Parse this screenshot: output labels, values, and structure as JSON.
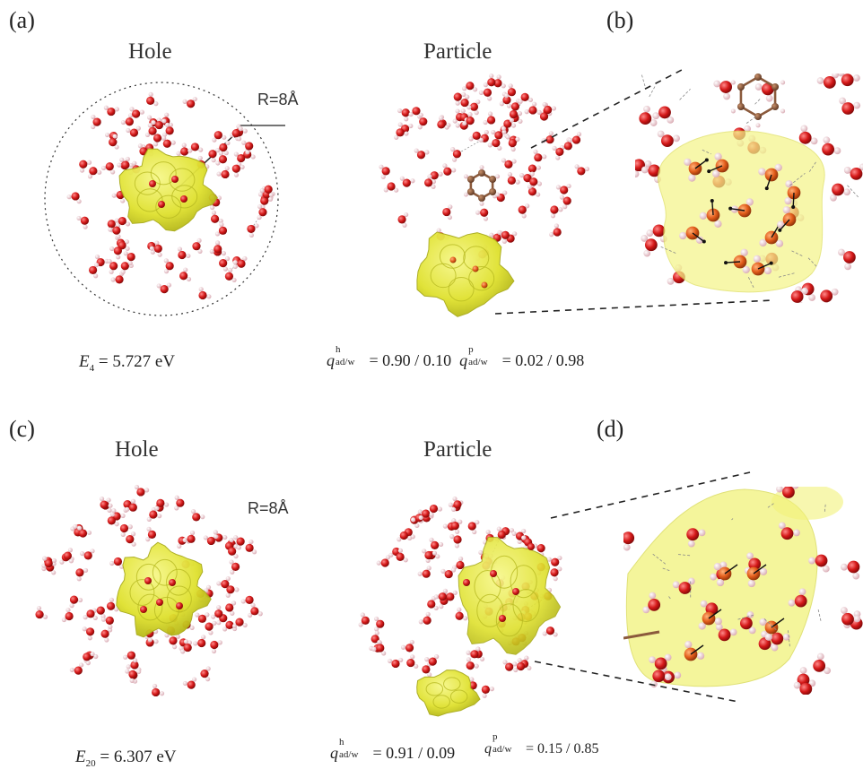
{
  "panels": {
    "a": {
      "letter": "(a)",
      "hole_title": "Hole",
      "particle_title": "Particle",
      "radius_label": "R=8Å",
      "energy": {
        "symbol": "E",
        "index": "4",
        "value": " = 5.727 eV"
      },
      "charges": {
        "qh_sup": "h",
        "qh_sub": "ad/w",
        "qh_value": " = 0.90 / 0.10",
        "qp_sup": "p",
        "qp_sub": "ad/w",
        "qp_value": " = 0.02 / 0.98"
      }
    },
    "b": {
      "letter": "(b)"
    },
    "c": {
      "letter": "(c)",
      "hole_title": "Hole",
      "particle_title": "Particle",
      "radius_label": "R=8Å",
      "energy": {
        "symbol": "E",
        "index": "20",
        "value": " = 6.307 eV"
      },
      "charges": {
        "qh_sup": "h",
        "qh_sub": "ad/w",
        "qh_value": " = 0.91 / 0.09",
        "qp_sup": "p",
        "qp_sub": "ad/w",
        "qp_value": " = 0.15 / 0.85"
      }
    },
    "d": {
      "letter": "(d)"
    }
  },
  "colors": {
    "oxygen": "#d41818",
    "hydrogen": "#f3cfd6",
    "carbon": "#8b5a3c",
    "orbital": "#e4e63a",
    "orbital_edge": "#a9ab1c",
    "highlight_oxygen": "#e25c1a"
  }
}
